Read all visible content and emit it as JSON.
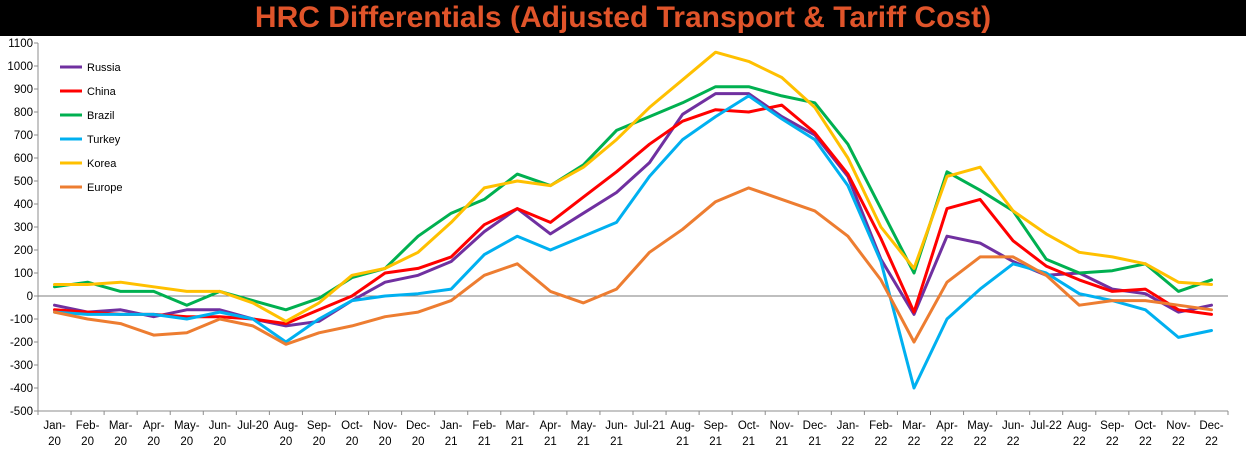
{
  "chart_data": {
    "type": "line",
    "title": "HRC Differentials (Adjusted Transport & Tariff Cost)",
    "title_color": "#e0542a",
    "title_background": "#000000",
    "ylim": [
      -500,
      1100
    ],
    "yticks": [
      -500,
      -400,
      -300,
      -200,
      -100,
      0,
      100,
      200,
      300,
      400,
      500,
      600,
      700,
      800,
      900,
      1000,
      1100
    ],
    "grid": false,
    "zero_line": true,
    "zero_line_color": "#7f7f7f",
    "legend_position": "top-left",
    "xlabels": [
      [
        "Jan-",
        "20"
      ],
      [
        "Feb-",
        "20"
      ],
      [
        "Mar-",
        "20"
      ],
      [
        "Apr-",
        "20"
      ],
      [
        "May-",
        "20"
      ],
      [
        "Jun-",
        "20"
      ],
      [
        "Jul-20",
        ""
      ],
      [
        "Aug-",
        "20"
      ],
      [
        "Sep-",
        "20"
      ],
      [
        "Oct-",
        "20"
      ],
      [
        "Nov-",
        "20"
      ],
      [
        "Dec-",
        "20"
      ],
      [
        "Jan-",
        "21"
      ],
      [
        "Feb-",
        "21"
      ],
      [
        "Mar-",
        "21"
      ],
      [
        "Apr-",
        "21"
      ],
      [
        "May-",
        "21"
      ],
      [
        "Jun-",
        "21"
      ],
      [
        "Jul-21",
        ""
      ],
      [
        "Aug-",
        "21"
      ],
      [
        "Sep-",
        "21"
      ],
      [
        "Oct-",
        "21"
      ],
      [
        "Nov-",
        "21"
      ],
      [
        "Dec-",
        "21"
      ],
      [
        "Jan-",
        "22"
      ],
      [
        "Feb-",
        "22"
      ],
      [
        "Mar-",
        "22"
      ],
      [
        "Apr-",
        "22"
      ],
      [
        "May-",
        "22"
      ],
      [
        "Jun-",
        "22"
      ],
      [
        "Jul-22",
        ""
      ],
      [
        "Aug-",
        "22"
      ],
      [
        "Sep-",
        "22"
      ],
      [
        "Oct-",
        "22"
      ],
      [
        "Nov-",
        "22"
      ],
      [
        "Dec-",
        "22"
      ]
    ],
    "x_months": [
      "2020-01",
      "2020-02",
      "2020-03",
      "2020-04",
      "2020-05",
      "2020-06",
      "2020-07",
      "2020-08",
      "2020-09",
      "2020-10",
      "2020-11",
      "2020-12",
      "2021-01",
      "2021-02",
      "2021-03",
      "2021-04",
      "2021-05",
      "2021-06",
      "2021-07",
      "2021-08",
      "2021-09",
      "2021-10",
      "2021-11",
      "2021-12",
      "2022-01",
      "2022-02",
      "2022-03",
      "2022-04",
      "2022-05",
      "2022-06",
      "2022-07",
      "2022-08",
      "2022-09",
      "2022-10",
      "2022-11",
      "2022-12"
    ],
    "series": [
      {
        "name": "Russia",
        "color": "#7030a0",
        "values": [
          -40,
          -70,
          -60,
          -90,
          -60,
          -60,
          -100,
          -130,
          -110,
          -20,
          60,
          90,
          150,
          280,
          380,
          270,
          360,
          450,
          580,
          790,
          880,
          880,
          780,
          700,
          520,
          160,
          -80,
          260,
          230,
          150,
          90,
          100,
          30,
          10,
          -70,
          -40
        ]
      },
      {
        "name": "China",
        "color": "#ff0000",
        "values": [
          -60,
          -70,
          -80,
          -80,
          -90,
          -90,
          -100,
          -120,
          -60,
          0,
          100,
          120,
          170,
          310,
          380,
          320,
          430,
          540,
          660,
          760,
          810,
          800,
          830,
          710,
          530,
          250,
          -70,
          380,
          420,
          240,
          130,
          70,
          20,
          30,
          -60,
          -80
        ]
      },
      {
        "name": "Brazil",
        "color": "#00b050",
        "values": [
          40,
          60,
          20,
          20,
          -40,
          20,
          -20,
          -60,
          -10,
          80,
          120,
          260,
          360,
          420,
          530,
          480,
          570,
          720,
          780,
          840,
          910,
          910,
          870,
          840,
          660,
          380,
          100,
          540,
          460,
          370,
          160,
          100,
          110,
          140,
          20,
          70
        ]
      },
      {
        "name": "Turkey",
        "color": "#00b0f0",
        "values": [
          -70,
          -80,
          -80,
          -80,
          -100,
          -70,
          -100,
          -200,
          -100,
          -20,
          0,
          10,
          30,
          180,
          260,
          200,
          260,
          320,
          520,
          680,
          780,
          870,
          770,
          680,
          480,
          150,
          -400,
          -100,
          30,
          140,
          100,
          10,
          -20,
          -60,
          -180,
          -150
        ]
      },
      {
        "name": "Korea",
        "color": "#ffc000",
        "values": [
          50,
          50,
          60,
          40,
          20,
          20,
          -30,
          -110,
          -30,
          90,
          120,
          190,
          320,
          470,
          500,
          480,
          560,
          680,
          820,
          940,
          1060,
          1020,
          950,
          820,
          600,
          300,
          120,
          520,
          560,
          370,
          270,
          190,
          170,
          140,
          60,
          50
        ]
      },
      {
        "name": "Europe",
        "color": "#ed7d31",
        "values": [
          -70,
          -100,
          -120,
          -170,
          -160,
          -100,
          -130,
          -210,
          -160,
          -130,
          -90,
          -70,
          -20,
          90,
          140,
          20,
          -30,
          30,
          190,
          290,
          410,
          470,
          420,
          370,
          260,
          70,
          -200,
          60,
          170,
          170,
          90,
          -40,
          -20,
          -20,
          -40,
          -60
        ]
      }
    ]
  }
}
